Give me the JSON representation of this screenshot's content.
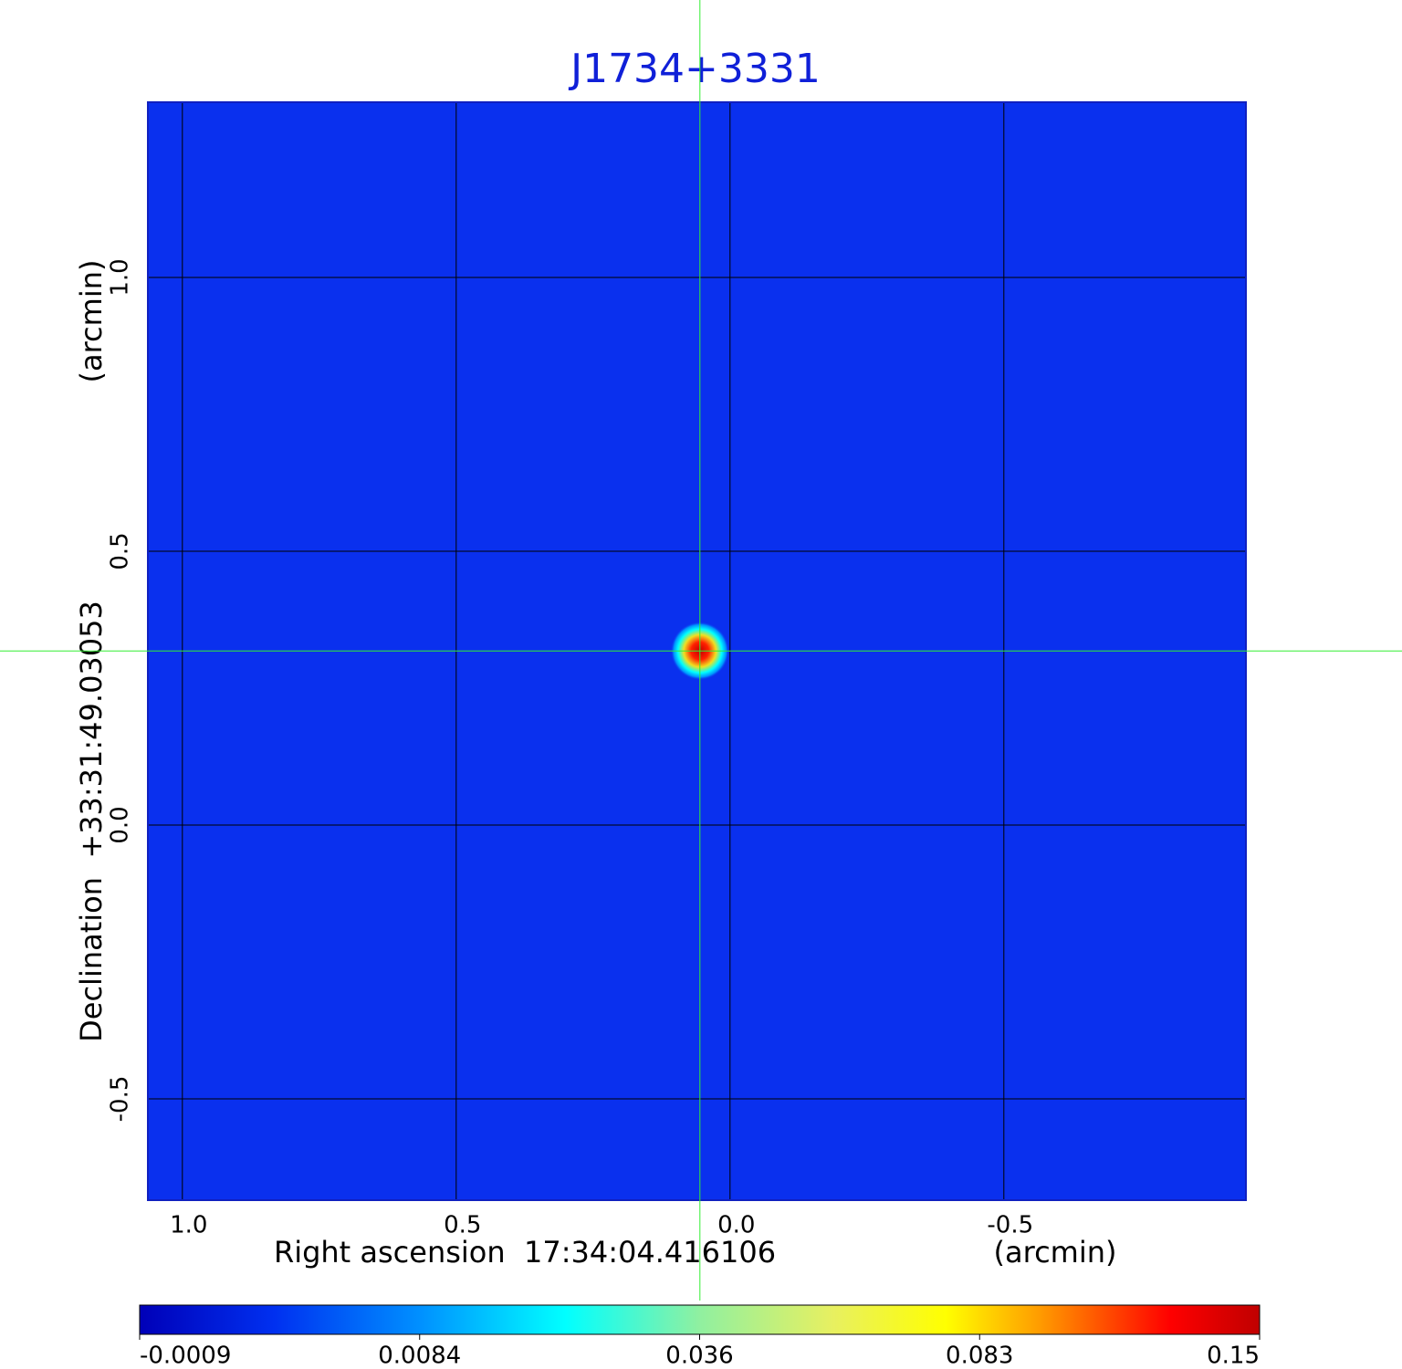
{
  "chart_data": {
    "type": "image",
    "title": "J1734+3331",
    "x_label": "Right ascension  17:34:04.416106",
    "x_unit": "(arcmin)",
    "y_label": "Declination  +33:31:49.03053",
    "y_unit": "(arcmin)",
    "xlim": [
      1.063,
      -0.942
    ],
    "ylim": [
      -0.685,
      1.32
    ],
    "xticks": [
      {
        "value": 1,
        "label": "1.0"
      },
      0.5,
      {
        "value": 0,
        "label": "0.0"
      },
      -0.5
    ],
    "yticks": [
      {
        "value": 1,
        "label": "1.0"
      },
      0.5,
      {
        "value": 0,
        "label": "0.0"
      },
      -0.5
    ],
    "grid": true,
    "background_color": "#0a30ee",
    "crosshair": {
      "x": 0.055,
      "y": 0.318,
      "color": "#33ee33"
    },
    "sources": [
      {
        "x": 0.055,
        "y": 0.318,
        "peak": 0.15
      }
    ],
    "colorbar": {
      "ticks": [
        -0.0009,
        0.0084,
        0.036,
        0.083,
        0.15
      ]
    }
  }
}
